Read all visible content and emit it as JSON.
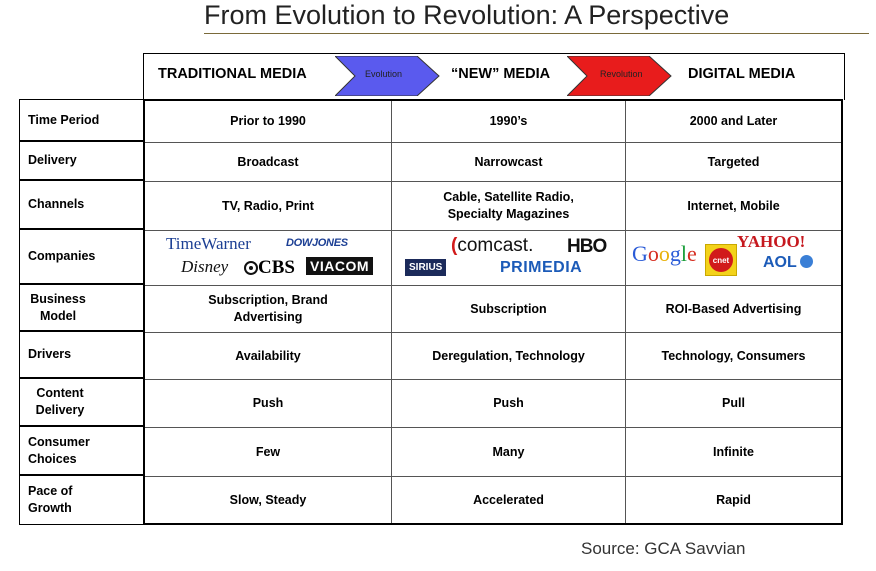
{
  "title": "From Evolution to Revolution: A Perspective",
  "header": {
    "col1": "TRADITIONAL MEDIA",
    "col2": "“NEW” MEDIA",
    "col3": "DIGITAL MEDIA",
    "arrow1_label": "Evolution",
    "arrow2_label": "Revolution",
    "arrow1_color": "#5a5aee",
    "arrow2_color": "#e81c1c"
  },
  "rows": [
    {
      "label": "Time Period",
      "cells": [
        "Prior to 1990",
        "1990’s",
        "2000 and Later"
      ]
    },
    {
      "label": "Delivery",
      "cells": [
        "Broadcast",
        "Narrowcast",
        "Targeted"
      ]
    },
    {
      "label": "Channels",
      "cells": [
        "TV, Radio, Print",
        "Cable, Satellite Radio, Specialty Magazines",
        "Internet, Mobile"
      ]
    },
    {
      "label": "Companies",
      "cells": [
        "",
        "",
        ""
      ]
    },
    {
      "label": "Business Model",
      "cells": [
        "Subscription, Brand Advertising",
        "Subscription",
        "ROI-Based Advertising"
      ]
    },
    {
      "label": "Drivers",
      "cells": [
        "Availability",
        "Deregulation, Technology",
        "Technology, Consumers"
      ]
    },
    {
      "label": "Content Delivery",
      "cells": [
        "Push",
        "Push",
        "Pull"
      ]
    },
    {
      "label": "Consumer Choices",
      "cells": [
        "Few",
        "Many",
        "Infinite"
      ]
    },
    {
      "label": "Pace of Growth",
      "cells": [
        "Slow, Steady",
        "Accelerated",
        "Rapid"
      ]
    }
  ],
  "logos": {
    "timewarner": "TimeWarner",
    "dowjones": "DOWJONES",
    "disney": "Disney",
    "cbs": "CBS",
    "viacom": "VIACOM",
    "comcast": "comcast.",
    "hbo": "HBO",
    "sirius": "SIRIUS",
    "primedia": "PRIMEDIA",
    "google": [
      "G",
      "o",
      "o",
      "g",
      "l",
      "e"
    ],
    "cnet": "cnet",
    "yahoo": "YAHOO!",
    "aol": "AOL"
  },
  "source": "Source: GCA Savvian"
}
